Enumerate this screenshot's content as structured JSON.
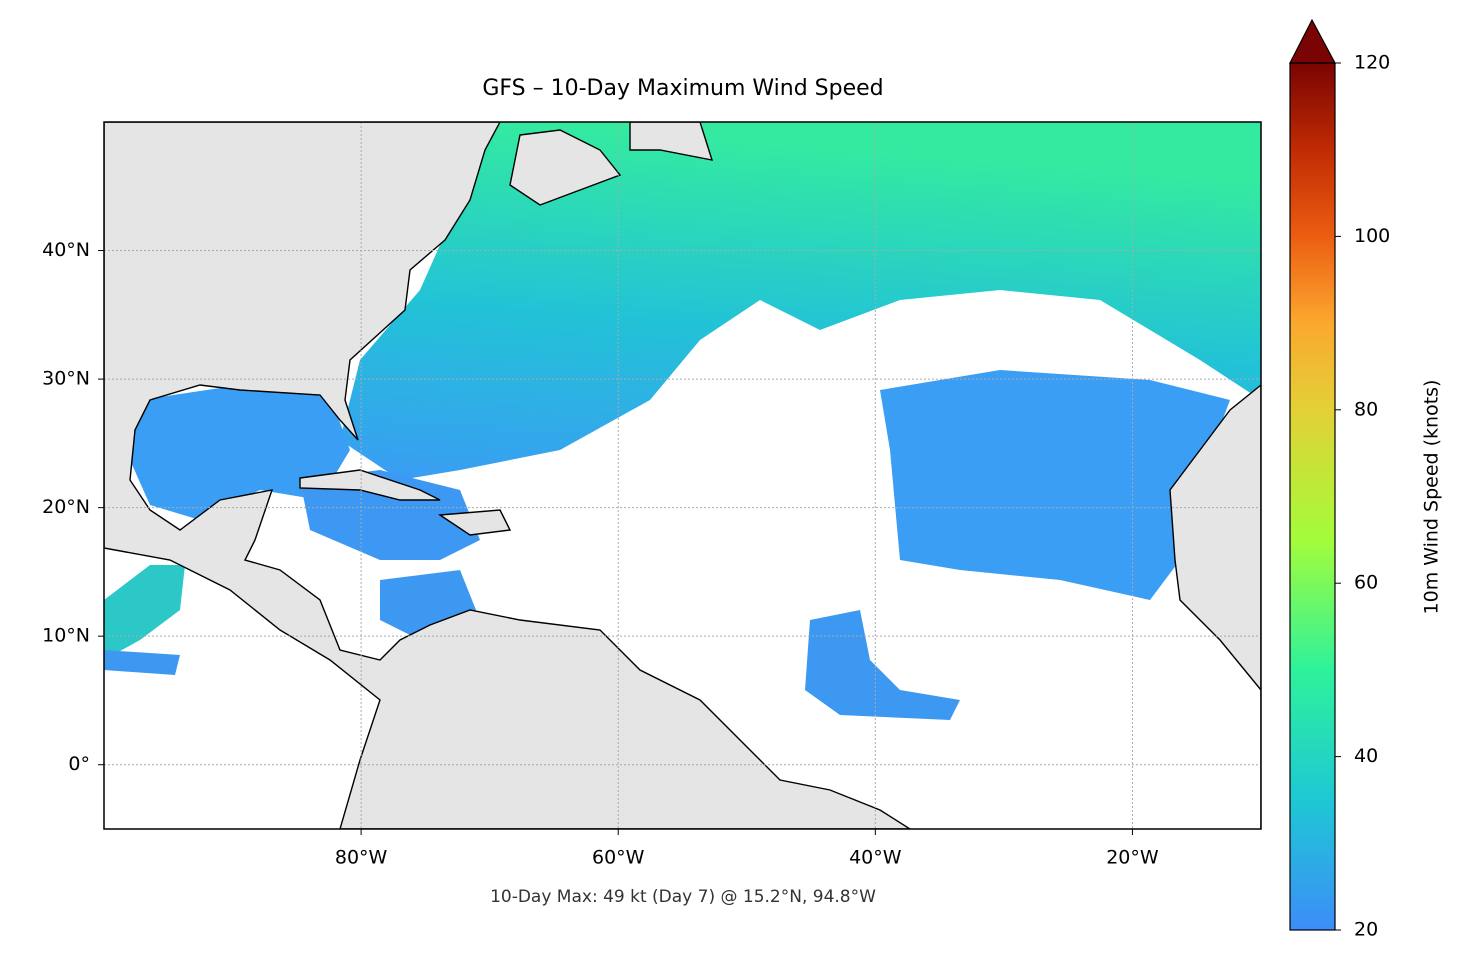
{
  "chart_data": {
    "type": "map",
    "title": "GFS – 10-Day Maximum Wind Speed",
    "annotation": "10-Day Max: 49 kt (Day 7) @ 15.2°N, 94.8°W",
    "xlim": [
      -100,
      -10
    ],
    "ylim": [
      -5,
      50
    ],
    "xticks": [
      {
        "value": -80,
        "label": "80°W"
      },
      {
        "value": -60,
        "label": "60°W"
      },
      {
        "value": -40,
        "label": "40°W"
      },
      {
        "value": -20,
        "label": "20°W"
      }
    ],
    "yticks": [
      {
        "value": 0,
        "label": "0°"
      },
      {
        "value": 10,
        "label": "10°N"
      },
      {
        "value": 20,
        "label": "20°N"
      },
      {
        "value": 30,
        "label": "30°N"
      },
      {
        "value": 40,
        "label": "40°N"
      }
    ],
    "grid": true,
    "colorbar": {
      "label": "10m Wind Speed (knots)",
      "lim": [
        20,
        120
      ],
      "ticks": [
        20,
        40,
        60,
        80,
        100,
        120
      ]
    }
  }
}
